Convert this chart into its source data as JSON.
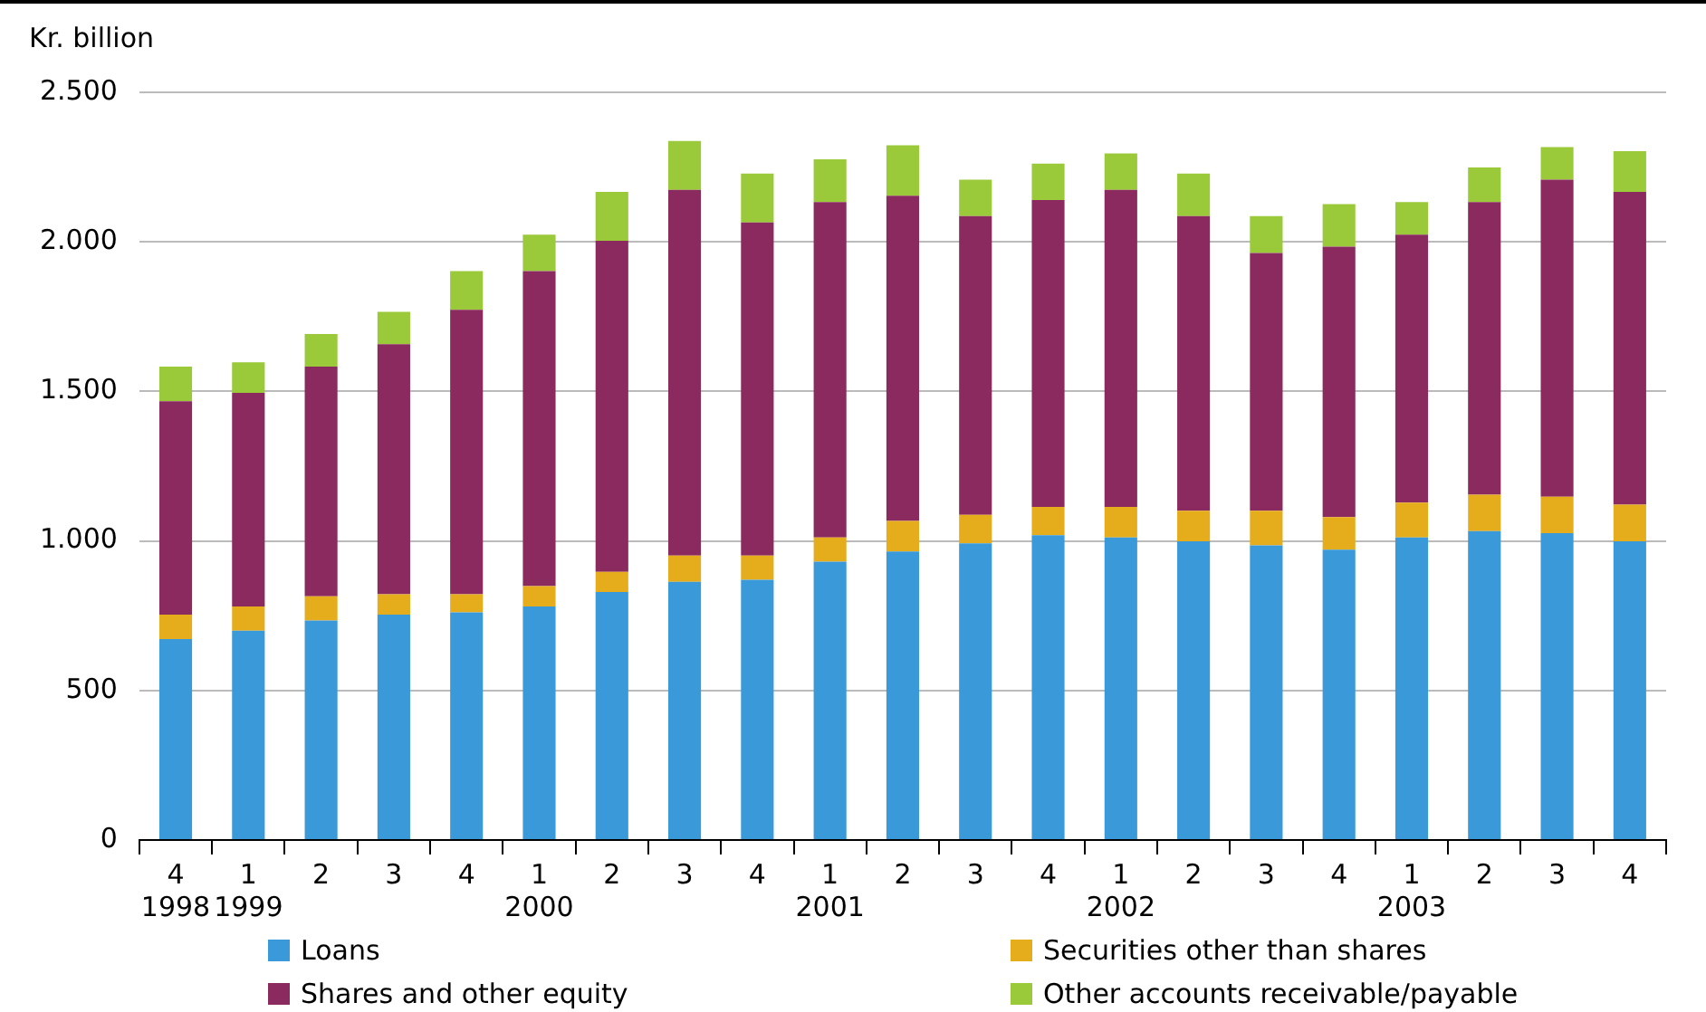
{
  "chart_data": {
    "type": "bar",
    "stacked": true,
    "ylabel": "Kr. billion",
    "categories": [
      "4\n1998",
      "1\n1999",
      "2",
      "3",
      "4",
      "1\n2000",
      "2",
      "3",
      "4",
      "1\n2001",
      "2",
      "3",
      "4",
      "1\n2002",
      "2",
      "3",
      "4",
      "1\n2003",
      "2",
      "3",
      "4"
    ],
    "series": [
      {
        "name": "Loans",
        "color": "#3a9ad9",
        "values": [
          672,
          700,
          734,
          754,
          761,
          781,
          829,
          863,
          870,
          931,
          965,
          992,
          1019,
          1012,
          999,
          985,
          971,
          1012,
          1033,
          1026,
          999
        ]
      },
      {
        "name": "Securities other than shares",
        "color": "#e5ac1c",
        "values": [
          82,
          81,
          81,
          68,
          61,
          68,
          68,
          88,
          81,
          81,
          102,
          95,
          95,
          102,
          102,
          116,
          109,
          116,
          122,
          122,
          122
        ]
      },
      {
        "name": "Shares and other equity",
        "color": "#8b2a5e",
        "values": [
          713,
          714,
          768,
          836,
          951,
          1053,
          1107,
          1223,
          1114,
          1121,
          1087,
          999,
          1026,
          1060,
          985,
          862,
          904,
          896,
          978,
          1060,
          1046
        ]
      },
      {
        "name": "Other accounts receivable/payable",
        "color": "#9ac93a",
        "values": [
          116,
          102,
          109,
          108,
          129,
          122,
          163,
          163,
          163,
          143,
          169,
          122,
          122,
          122,
          142,
          123,
          142,
          109,
          116,
          109,
          136
        ]
      }
    ],
    "ylim": [
      0,
      2500
    ],
    "yticks": [
      0,
      {
        "value": 500,
        "label": "500"
      },
      {
        "value": 1000,
        "label": "1.000"
      },
      {
        "value": 1500,
        "label": "1.500"
      },
      {
        "value": 2000,
        "label": "2.000"
      },
      {
        "value": 2500,
        "label": "2.500"
      }
    ],
    "grid": "y",
    "legend": "bottom"
  }
}
